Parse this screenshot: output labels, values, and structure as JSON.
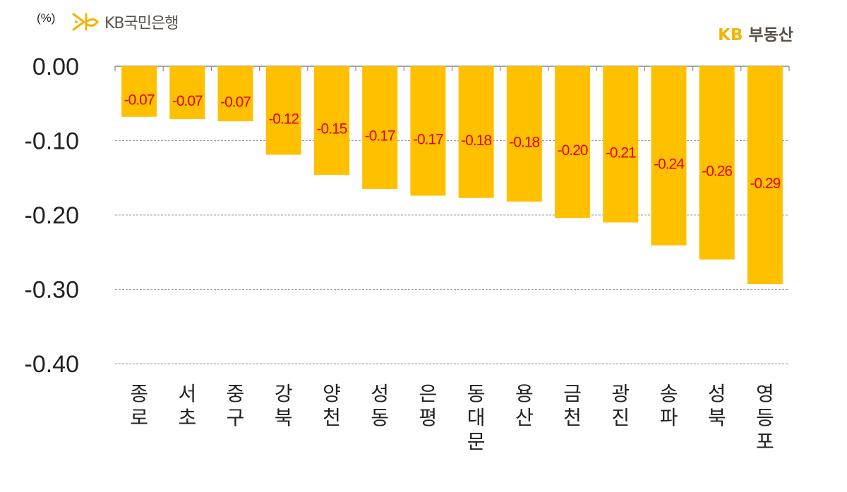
{
  "header": {
    "unit": "(%)",
    "bank_logo_text": "KB국민은행",
    "realty_logo_kb": "KB",
    "realty_logo_text": "부동산"
  },
  "colors": {
    "bar": "#FFC000",
    "data_label": "#E0000F",
    "grid": "#9a9a9a"
  },
  "chart_data": {
    "type": "bar",
    "categories": [
      "종로",
      "서초",
      "중구",
      "강북",
      "양천",
      "성동",
      "은평",
      "동대문",
      "용산",
      "금천",
      "광진",
      "송파",
      "성북",
      "영등포"
    ],
    "values": [
      -0.068,
      -0.071,
      -0.074,
      -0.119,
      -0.146,
      -0.165,
      -0.174,
      -0.177,
      -0.182,
      -0.204,
      -0.21,
      -0.241,
      -0.26,
      -0.293
    ],
    "data_labels": [
      "-0.07",
      "-0.07",
      "-0.07",
      "-0.12",
      "-0.15",
      "-0.17",
      "-0.17",
      "-0.18",
      "-0.18",
      "-0.20",
      "-0.21",
      "-0.24",
      "-0.26",
      "-0.29"
    ],
    "yticks": [
      "0.00",
      "-0.10",
      "-0.20",
      "-0.30",
      "-0.40"
    ],
    "ylim": [
      -0.4,
      0
    ],
    "grid": true,
    "title": "",
    "xlabel": "",
    "ylabel": ""
  }
}
